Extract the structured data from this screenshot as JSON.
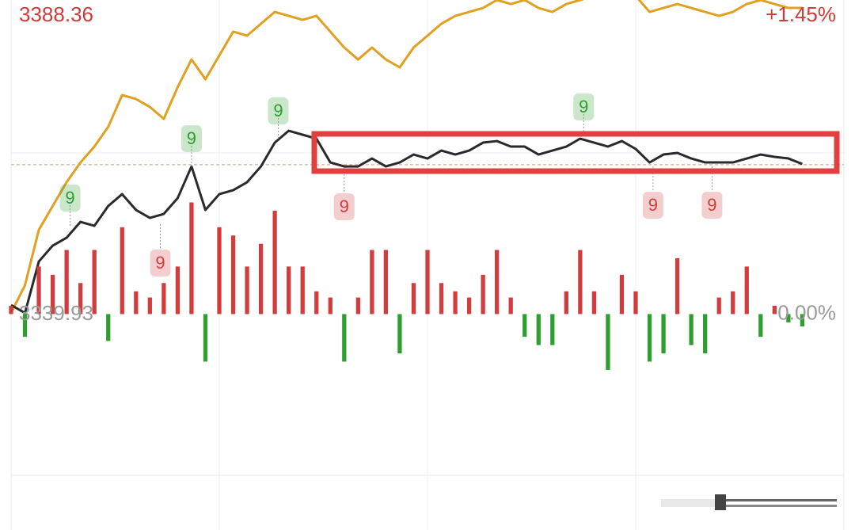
{
  "chart_data": {
    "type": "line",
    "xlim": [
      0,
      240
    ],
    "xticks": [
      0,
      60,
      120,
      180,
      240
    ],
    "ylim": [
      3314,
      3388.36
    ],
    "yticks": [
      3339.93,
      3388.36
    ],
    "y2lim": [
      -0.78,
      1.45
    ],
    "y2ticks": [
      {
        "value": 0,
        "label": "0.00%"
      },
      {
        "value": 1.45,
        "label": "+1.45%"
      }
    ],
    "reference": 3364.1,
    "x": [
      0,
      4,
      8,
      12,
      16,
      20,
      24,
      28,
      32,
      36,
      40,
      44,
      48,
      52,
      56,
      60,
      64,
      68,
      72,
      76,
      80,
      84,
      88,
      92,
      96,
      100,
      104,
      108,
      112,
      116,
      120,
      124,
      128,
      132,
      136,
      140,
      144,
      148,
      152,
      156,
      160,
      164,
      168,
      172,
      176,
      180,
      184,
      188,
      192,
      196,
      200,
      204,
      208,
      212,
      216,
      220,
      224,
      228
    ],
    "series": [
      {
        "color": "#e0a020",
        "values": [
          3340.19,
          3344.66,
          3353.6,
          3357.44,
          3361.27,
          3364.46,
          3367.02,
          3370.21,
          3375.33,
          3374.69,
          3373.41,
          3371.49,
          3376.6,
          3381.07,
          3377.88,
          3381.71,
          3385.55,
          3384.91,
          3386.83,
          3388.74,
          3388.1,
          3387.46,
          3388.1,
          3385.55,
          3382.99,
          3381.07,
          3382.99,
          3381.07,
          3379.8,
          3382.99,
          3384.91,
          3386.83,
          3388.1,
          3388.74,
          3389.38,
          3390.66,
          3390.02,
          3390.66,
          3389.38,
          3388.74,
          3390.02,
          3390.66,
          3391.3,
          3391.3,
          3391.3,
          3391.3,
          3388.74,
          3389.38,
          3390.02,
          3389.38,
          3388.74,
          3388.1,
          3388.74,
          3390.02,
          3390.66,
          3390.02,
          3389.38,
          3389.38
        ]
      },
      {
        "color": "#2a2a2a",
        "values": [
          3341.46,
          3340.19,
          3348.49,
          3351.05,
          3352.32,
          3354.88,
          3354.24,
          3357.44,
          3359.35,
          3356.8,
          3355.52,
          3356.16,
          3358.71,
          3363.82,
          3356.8,
          3359.35,
          3359.99,
          3361.27,
          3363.82,
          3367.66,
          3369.57,
          3368.94,
          3368.3,
          3364.46,
          3363.82,
          3363.82,
          3365.1,
          3363.82,
          3364.46,
          3365.74,
          3365.1,
          3366.38,
          3365.74,
          3366.38,
          3367.66,
          3367.91,
          3367.02,
          3367.02,
          3365.74,
          3366.38,
          3367.02,
          3368.3,
          3367.66,
          3367.02,
          3367.91,
          3366.64,
          3364.46,
          3365.74,
          3366.0,
          3365.1,
          3364.46,
          3364.46,
          3364.46,
          3365.1,
          3365.74,
          3365.36,
          3365.1,
          3364.21
        ]
      },
      {
        "type": "bar",
        "axis": "y2",
        "color": "#d23c3c",
        "negative_color": "#2e9e2e",
        "values": [
          0.04,
          -0.11,
          0.23,
          0.19,
          0.31,
          0.15,
          0.31,
          -0.13,
          0.42,
          0.11,
          0.08,
          0.15,
          0.23,
          0.54,
          -0.23,
          0.42,
          0.38,
          0.23,
          0.34,
          0.5,
          0.23,
          0.23,
          0.11,
          0.08,
          -0.23,
          0.08,
          0.31,
          0.31,
          -0.19,
          0.15,
          0.31,
          0.15,
          0.11,
          0.08,
          0.19,
          0.31,
          0.08,
          -0.11,
          -0.15,
          -0.15,
          0.11,
          0.31,
          0.11,
          -0.27,
          0.19,
          0.11,
          -0.23,
          -0.19,
          0.27,
          -0.15,
          -0.19,
          0.08,
          0.11,
          0.23,
          -0.11,
          0.04,
          -0.04,
          -0.06
        ]
      }
    ],
    "annotations": [
      {
        "text": "9",
        "x": 17,
        "y": 3354.24,
        "color": "#2e9e2e"
      },
      {
        "text": "9",
        "x": 52,
        "y": 3363.82,
        "color": "#2e9e2e"
      },
      {
        "text": "9",
        "x": 77,
        "y": 3368.3,
        "color": "#2e9e2e"
      },
      {
        "text": "9",
        "x": 165,
        "y": 3368.94,
        "color": "#2e9e2e"
      },
      {
        "text": "9",
        "x": 43,
        "y": 3354.5,
        "color": "#d23c3c"
      },
      {
        "text": "9",
        "x": 96,
        "y": 3363.57,
        "color": "#d23c3c"
      },
      {
        "text": "9",
        "x": 185,
        "y": 3363.82,
        "color": "#d23c3c"
      },
      {
        "text": "9",
        "x": 202,
        "y": 3363.82,
        "color": "#d23c3c"
      }
    ]
  }
}
